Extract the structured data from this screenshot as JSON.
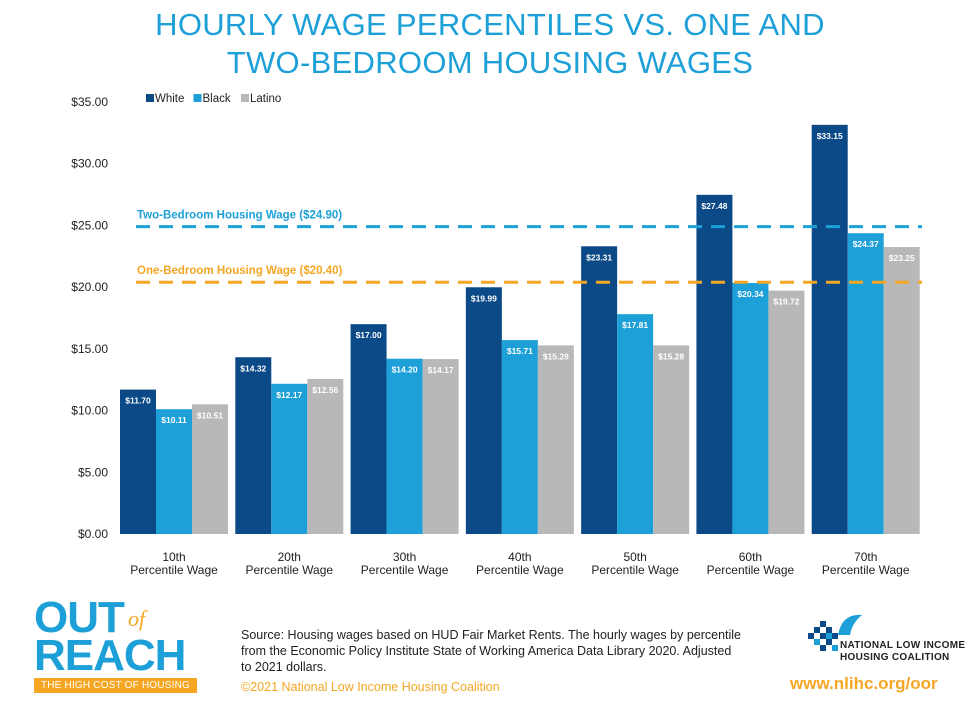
{
  "title_line1": "HOURLY WAGE PERCENTILES VS. ONE AND",
  "title_line2": "TWO-BEDROOM HOUSING WAGES",
  "chart_data": {
    "type": "bar",
    "categories": [
      [
        "10th",
        "Percentile Wage"
      ],
      [
        "20th",
        "Percentile Wage"
      ],
      [
        "30th",
        "Percentile Wage"
      ],
      [
        "40th",
        "Percentile Wage"
      ],
      [
        "50th",
        "Percentile Wage"
      ],
      [
        "60th",
        "Percentile Wage"
      ],
      [
        "70th",
        "Percentile Wage"
      ]
    ],
    "series": [
      {
        "name": "White",
        "color": "#0b4a86",
        "values": [
          11.7,
          14.32,
          17.0,
          19.99,
          23.31,
          27.48,
          33.15
        ]
      },
      {
        "name": "Black",
        "color": "#1da0d8",
        "values": [
          10.11,
          12.17,
          14.2,
          15.71,
          17.81,
          20.34,
          24.37
        ]
      },
      {
        "name": "Latino",
        "color": "#b8b8b8",
        "values": [
          10.51,
          12.56,
          14.17,
          15.28,
          15.28,
          19.72,
          23.25
        ]
      }
    ],
    "value_labels": [
      [
        "$11.70",
        "$14.32",
        "$17.00",
        "$19.99",
        "$23.31",
        "$27.48",
        "$33.15"
      ],
      [
        "$10.11",
        "$12.17",
        "$14.20",
        "$15.71",
        "$17.81",
        "$20.34",
        "$24.37"
      ],
      [
        "$10.51",
        "$12.56",
        "$14.17",
        "$15.28",
        "$15.28",
        "$19.72",
        "$23.25"
      ]
    ],
    "ylim": [
      0,
      35
    ],
    "yticks": [
      0,
      5,
      10,
      15,
      20,
      25,
      30,
      35
    ],
    "ytick_labels": [
      "$0.00",
      "$5.00",
      "$10.00",
      "$15.00",
      "$20.00",
      "$25.00",
      "$30.00",
      "$35.00"
    ],
    "reference_lines": [
      {
        "label": "Two-Bedroom Housing Wage ($24.90)",
        "value": 24.9,
        "color": "#1da0d8"
      },
      {
        "label": "One-Bedroom Housing Wage ($20.40)",
        "value": 20.4,
        "color": "#f5a623"
      }
    ],
    "legend_position": "top-left"
  },
  "logo": {
    "out": "OUT",
    "of": "of",
    "reach": "REACH",
    "tagline": "THE HIGH COST OF HOUSING"
  },
  "source_text": "Source: Housing wages based on HUD Fair Market Rents. The hourly wages by percentile from the Economic Policy Institute State of Working America Data Library 2020. Adjusted to 2021 dollars.",
  "copyright": "©2021 National Low Income Housing Coalition",
  "org": {
    "name_line1": "NATIONAL LOW INCOME",
    "name_line2": "HOUSING COALITION",
    "url": "www.nlihc.org/oor"
  }
}
